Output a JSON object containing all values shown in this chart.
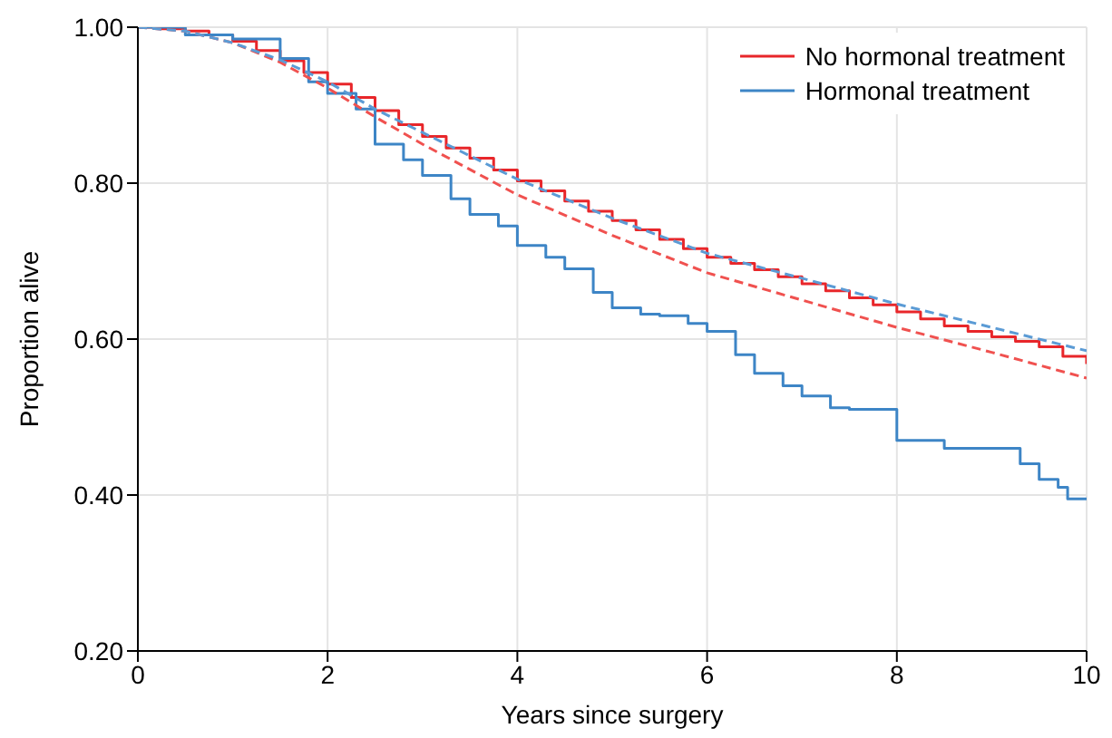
{
  "chart_data": {
    "type": "line",
    "xlabel": "Years since surgery",
    "ylabel": "Proportion alive",
    "xlim": [
      0,
      10
    ],
    "xticks": [
      0,
      2,
      4,
      6,
      8,
      10
    ],
    "ylim": [
      0.2,
      1.0
    ],
    "yticks": [
      {
        "value": 0.2,
        "label": "0.20"
      },
      {
        "value": 0.4,
        "label": "0.40"
      },
      {
        "value": 0.6,
        "label": "0.60"
      },
      {
        "value": 0.8,
        "label": "0.80"
      },
      {
        "value": 1.0,
        "label": "1.00"
      }
    ],
    "grid": true,
    "legend": "top right",
    "series": [
      {
        "name": "No hormonal treatment",
        "type": "step",
        "color": "#e8262a",
        "line_style": "solid",
        "x": [
          0,
          0.25,
          0.5,
          0.75,
          1,
          1.25,
          1.5,
          1.75,
          2,
          2.25,
          2.5,
          2.75,
          3,
          3.25,
          3.5,
          3.75,
          4,
          4.25,
          4.5,
          4.75,
          5,
          5.25,
          5.5,
          5.75,
          6,
          6.25,
          6.5,
          6.75,
          7,
          7.25,
          7.5,
          7.75,
          8,
          8.25,
          8.5,
          8.75,
          9,
          9.25,
          9.5,
          9.75,
          10
        ],
        "values": [
          1.0,
          0.998,
          0.995,
          0.99,
          0.982,
          0.97,
          0.957,
          0.942,
          0.927,
          0.91,
          0.893,
          0.875,
          0.86,
          0.845,
          0.832,
          0.817,
          0.803,
          0.79,
          0.777,
          0.764,
          0.752,
          0.74,
          0.728,
          0.716,
          0.705,
          0.697,
          0.689,
          0.68,
          0.671,
          0.662,
          0.653,
          0.644,
          0.635,
          0.626,
          0.617,
          0.61,
          0.603,
          0.597,
          0.59,
          0.578,
          0.568
        ]
      },
      {
        "name": "Hormonal treatment",
        "type": "step",
        "color": "#3d85c6",
        "line_style": "solid",
        "x": [
          0,
          0.5,
          1,
          1.5,
          1.8,
          2,
          2.3,
          2.5,
          2.8,
          3,
          3.3,
          3.5,
          3.8,
          4,
          4.3,
          4.5,
          4.8,
          5,
          5.3,
          5.5,
          5.8,
          6,
          6.3,
          6.5,
          6.8,
          7,
          7.3,
          7.5,
          7.8,
          8,
          8.5,
          9,
          9.3,
          9.5,
          9.7,
          9.8,
          10
        ],
        "values": [
          1.0,
          0.99,
          0.985,
          0.96,
          0.93,
          0.915,
          0.895,
          0.85,
          0.83,
          0.81,
          0.78,
          0.76,
          0.745,
          0.72,
          0.705,
          0.69,
          0.66,
          0.64,
          0.632,
          0.63,
          0.62,
          0.61,
          0.58,
          0.556,
          0.54,
          0.527,
          0.512,
          0.51,
          0.51,
          0.47,
          0.46,
          0.46,
          0.44,
          0.42,
          0.41,
          0.395,
          0.395
        ]
      },
      {
        "color": "#f0514f",
        "line_style": "dashed",
        "x": [
          0,
          0.5,
          1,
          1.5,
          2,
          2.5,
          3,
          4,
          5,
          6,
          7,
          8,
          9,
          10
        ],
        "values": [
          1.0,
          0.995,
          0.98,
          0.955,
          0.922,
          0.885,
          0.85,
          0.785,
          0.733,
          0.685,
          0.65,
          0.615,
          0.583,
          0.55
        ]
      },
      {
        "color": "#5b9bd5",
        "line_style": "dashed",
        "x": [
          0,
          0.5,
          1,
          1.5,
          2,
          2.5,
          3,
          4,
          5,
          6,
          7,
          8,
          9,
          10
        ],
        "values": [
          1.0,
          0.995,
          0.98,
          0.958,
          0.93,
          0.895,
          0.865,
          0.805,
          0.755,
          0.71,
          0.678,
          0.645,
          0.615,
          0.585
        ]
      }
    ]
  }
}
